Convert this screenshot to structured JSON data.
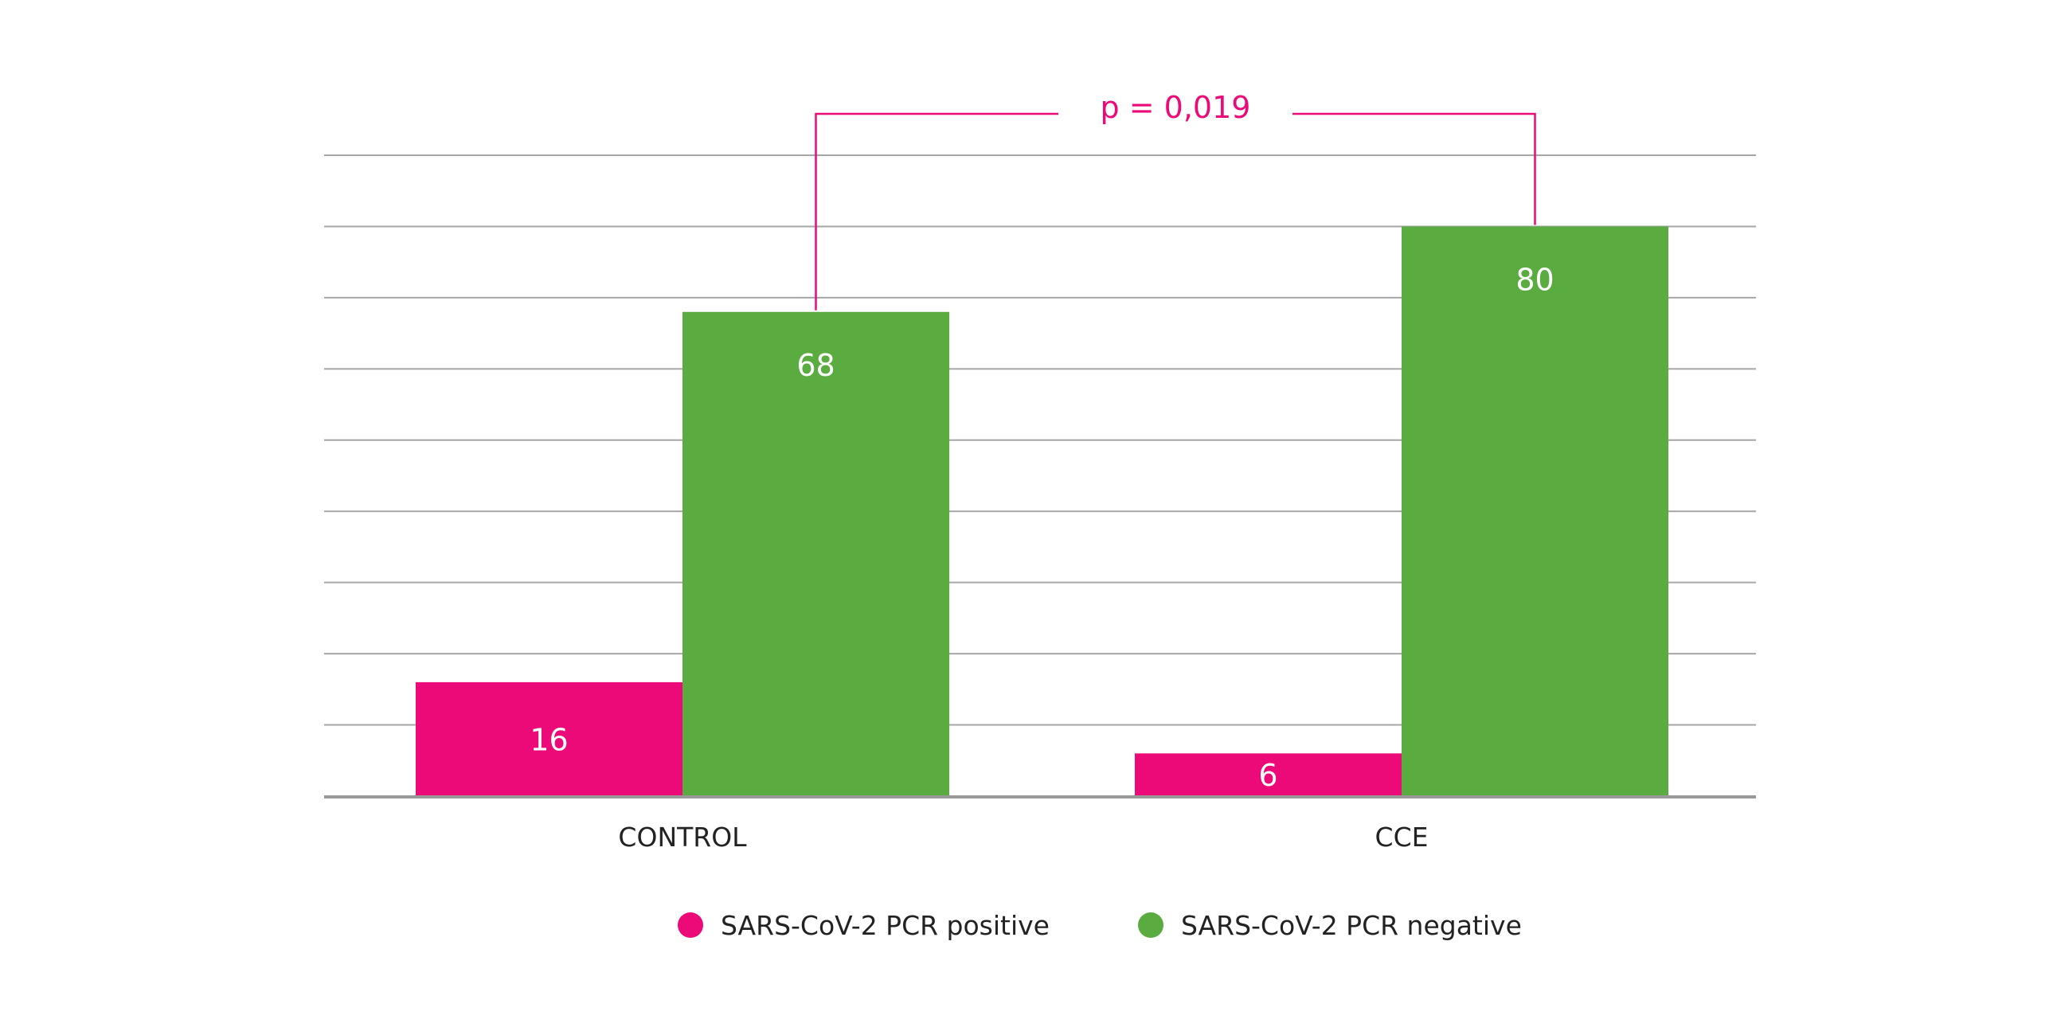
{
  "chart_data": {
    "type": "bar",
    "categories": [
      "CONTROL",
      "CCE"
    ],
    "series": [
      {
        "name": "SARS-CoV-2 PCR positive",
        "color": "#ec0a78",
        "values": [
          16,
          6
        ]
      },
      {
        "name": "SARS-CoV-2 PCR negative",
        "color": "#5aac41",
        "values": [
          68,
          80
        ]
      }
    ],
    "title": "",
    "xlabel": "",
    "ylabel": "",
    "ylim": [
      0,
      90
    ],
    "grid": true,
    "y_tick_labels_shown": false,
    "legend_position": "bottom-center",
    "annotation": {
      "text": "p = 0,019",
      "color": "#ec0a78",
      "connects": [
        "CONTROL: SARS-CoV-2 PCR negative",
        "CCE: SARS-CoV-2 PCR negative"
      ]
    },
    "gridline_color": "#a6a6a6",
    "axis_color": "#999999"
  }
}
